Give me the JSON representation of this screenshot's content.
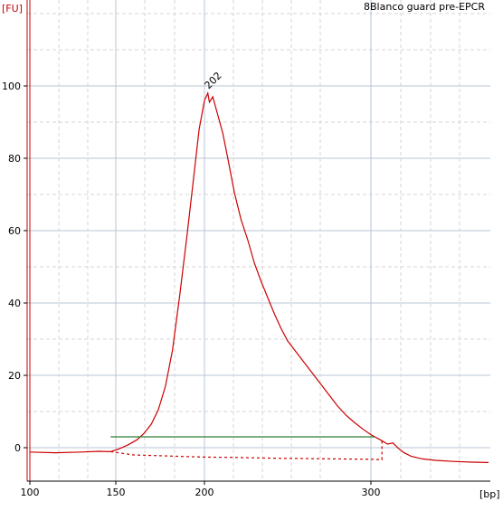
{
  "chart_data": {
    "type": "line",
    "title": "8Blanco guard pre-EPCR",
    "y_unit": "[FU]",
    "x_unit": "[bp]",
    "ylim": [
      -9,
      121
    ],
    "yticks": [
      0,
      20,
      40,
      60,
      80,
      100
    ],
    "xticks": [
      100,
      150,
      200,
      300
    ],
    "grid": true,
    "peak": {
      "label": "202",
      "x": 202,
      "y": 98
    },
    "series": [
      {
        "color": "#cc0000",
        "points": [
          [
            100,
            -1.2
          ],
          [
            115,
            -1.4
          ],
          [
            130,
            -1.2
          ],
          [
            140,
            -1.0
          ],
          [
            147,
            -1.1
          ],
          [
            152,
            -0.3
          ],
          [
            157,
            0.8
          ],
          [
            162,
            2.2
          ],
          [
            166,
            4.0
          ],
          [
            170,
            6.5
          ],
          [
            174,
            10.5
          ],
          [
            178,
            17.0
          ],
          [
            182,
            27.0
          ],
          [
            186,
            42.0
          ],
          [
            190,
            58.0
          ],
          [
            194,
            75.0
          ],
          [
            197,
            88.0
          ],
          [
            200,
            96.0
          ],
          [
            202,
            98.0
          ],
          [
            203,
            95.5
          ],
          [
            205,
            97.0
          ],
          [
            208,
            92.0
          ],
          [
            211,
            87.0
          ],
          [
            214,
            80.0
          ],
          [
            218,
            70.5
          ],
          [
            222,
            63.0
          ],
          [
            226,
            57.5
          ],
          [
            230,
            51.0
          ],
          [
            234,
            46.0
          ],
          [
            238,
            41.5
          ],
          [
            242,
            37.0
          ],
          [
            246,
            33.0
          ],
          [
            250,
            29.5
          ],
          [
            255,
            26.5
          ],
          [
            260,
            23.5
          ],
          [
            265,
            20.5
          ],
          [
            270,
            17.5
          ],
          [
            275,
            14.5
          ],
          [
            280,
            11.5
          ],
          [
            285,
            9.0
          ],
          [
            290,
            7.0
          ],
          [
            295,
            5.2
          ],
          [
            300,
            3.6
          ],
          [
            305,
            2.2
          ],
          [
            309,
            1.0
          ],
          [
            312,
            1.3
          ],
          [
            315,
            -0.2
          ],
          [
            318,
            -1.4
          ],
          [
            322,
            -2.4
          ],
          [
            328,
            -3.1
          ],
          [
            335,
            -3.5
          ],
          [
            345,
            -3.8
          ],
          [
            355,
            -4.0
          ],
          [
            364,
            -4.1
          ]
        ]
      },
      {
        "color": "#cc0000",
        "dashed": true,
        "points": [
          [
            147,
            -1.1
          ],
          [
            160,
            -2.0
          ],
          [
            180,
            -2.3
          ],
          [
            200,
            -2.6
          ],
          [
            220,
            -2.7
          ],
          [
            240,
            -2.9
          ],
          [
            260,
            -3.0
          ],
          [
            280,
            -3.1
          ],
          [
            300,
            -3.2
          ],
          [
            306,
            -3.3
          ],
          [
            306,
            2.2
          ]
        ]
      },
      {
        "color": "#2e7d32",
        "points": [
          [
            147,
            3.0
          ],
          [
            302,
            3.0
          ]
        ]
      }
    ]
  }
}
